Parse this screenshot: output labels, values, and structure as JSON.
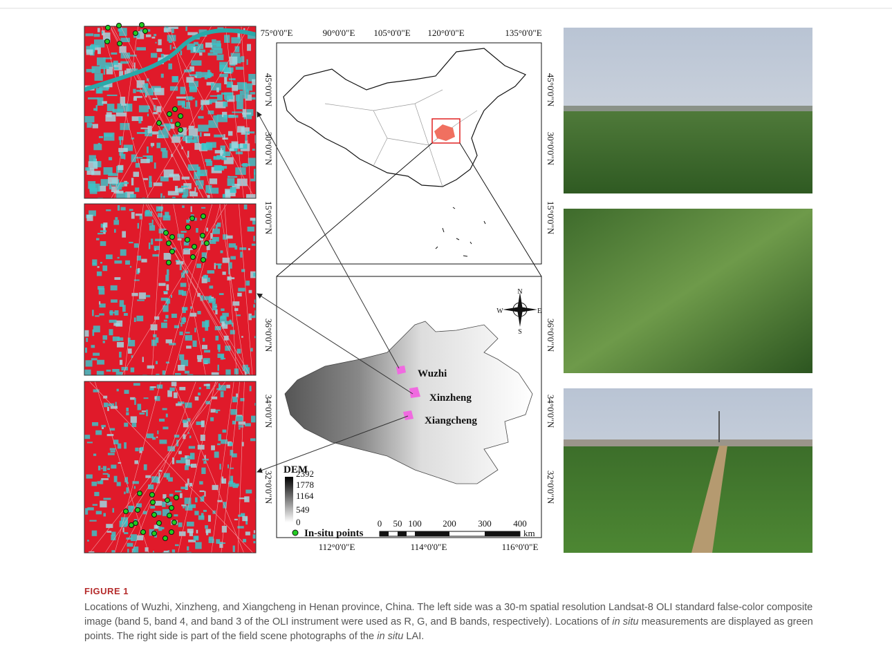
{
  "figure": {
    "overview_map": {
      "lon_labels": [
        "75°0'0\"E",
        "90°0'0\"E",
        "105°0'0\"E",
        "120°0'0\"E",
        "135°0'0\"E"
      ],
      "lat_labels": [
        "45°0'0\"N",
        "30°0'0\"N",
        "15°0'0\"N"
      ]
    },
    "henan_map": {
      "lon_labels": [
        "112°0'0\"E",
        "114°0'0\"E",
        "116°0'0\"E"
      ],
      "lat_labels": [
        "36°0'0\"N",
        "34°0'0\"N",
        "32°0'0\"N"
      ],
      "sites": [
        "Wuzhi",
        "Xinzheng",
        "Xiangcheng"
      ],
      "compass": [
        "N",
        "S",
        "E",
        "W"
      ],
      "dem_legend": {
        "title": "DEM",
        "ticks": [
          "2392",
          "1778",
          "1164",
          "549",
          "0"
        ]
      },
      "points_legend": "In-situ points",
      "scale_bar": {
        "ticks": [
          "0",
          "50",
          "100",
          "200",
          "300",
          "400"
        ],
        "unit": "km"
      }
    },
    "caption": {
      "label": "FIGURE 1",
      "runs": [
        {
          "text": "Locations of Wuzhi, Xinzheng, and Xiangcheng in Henan province, China. The left side was a 30-m spatial resolution Landsat-8 OLI standard false-color composite image (band 5, band 4, and band 3 of the OLI instrument were used as R, G, and B bands, respectively). Locations of ",
          "italic": false
        },
        {
          "text": "in situ",
          "italic": true
        },
        {
          "text": " measurements are displayed as green points. The right side is part of the field scene photographs of the ",
          "italic": false
        },
        {
          "text": "in situ",
          "italic": true
        },
        {
          "text": " LAI.",
          "italic": false
        }
      ]
    }
  }
}
